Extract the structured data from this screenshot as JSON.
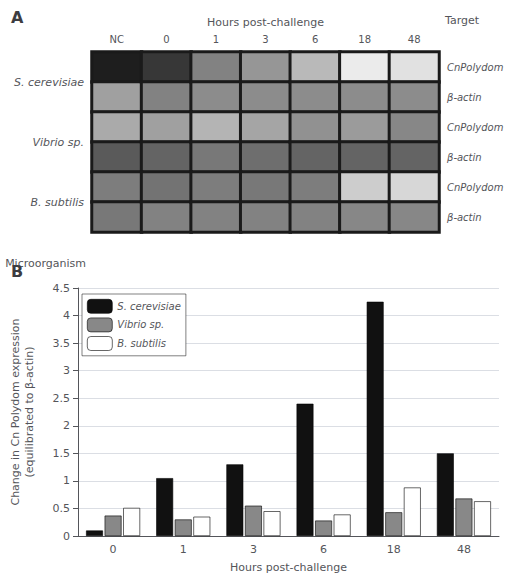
{
  "chart_data": [
    {
      "type": "heatmap",
      "title": "A",
      "ylabel": "Microorganism",
      "xlabel": "Hours post-challenge",
      "y2label": "Target",
      "x": [
        "NC",
        "0",
        "1",
        "3",
        "6",
        "18",
        "48"
      ],
      "y_groups": [
        "S. cerevisiae",
        "Vibrio sp.",
        "B. subtilis"
      ],
      "y": [
        "CnPolydom",
        "β-actin"
      ],
      "zlim": [
        0,
        255
      ],
      "cells": [
        [
          [
            30,
            160
          ],
          [
            55,
            130
          ],
          [
            130,
            140
          ],
          [
            150,
            140
          ],
          [
            185,
            140
          ],
          [
            235,
            140
          ],
          [
            225,
            140
          ]
        ],
        [
          [
            170,
            90
          ],
          [
            160,
            100
          ],
          [
            180,
            120
          ],
          [
            165,
            110
          ],
          [
            145,
            100
          ],
          [
            155,
            100
          ],
          [
            135,
            100
          ]
        ],
        [
          [
            125,
            120
          ],
          [
            115,
            130
          ],
          [
            125,
            130
          ],
          [
            120,
            130
          ],
          [
            125,
            130
          ],
          [
            205,
            135
          ],
          [
            215,
            135
          ]
        ]
      ]
    },
    {
      "type": "bar",
      "title": "B",
      "xlabel": "Hours post-challenge",
      "ylabel": "Change in Cn Polydom expression\n(equilibrated to β-actin)",
      "categories": [
        "0",
        "1",
        "3",
        "6",
        "18",
        "48"
      ],
      "series": [
        {
          "name": "S. cerevisiae",
          "color": "#111111",
          "values": [
            0.1,
            1.05,
            1.3,
            2.4,
            4.25,
            1.5
          ]
        },
        {
          "name": "Vibrio sp.",
          "color": "#888888",
          "values": [
            0.37,
            0.3,
            0.55,
            0.28,
            0.43,
            0.68
          ]
        },
        {
          "name": "B. subtilis",
          "color": "#ffffff",
          "values": [
            0.51,
            0.35,
            0.45,
            0.39,
            0.88,
            0.63
          ]
        }
      ],
      "ylim": [
        0,
        4.5
      ],
      "yticks": [
        0,
        0.5,
        1,
        1.5,
        2,
        2.5,
        3,
        3.5,
        4,
        4.5
      ],
      "grid": true,
      "legend": "upper left"
    }
  ]
}
